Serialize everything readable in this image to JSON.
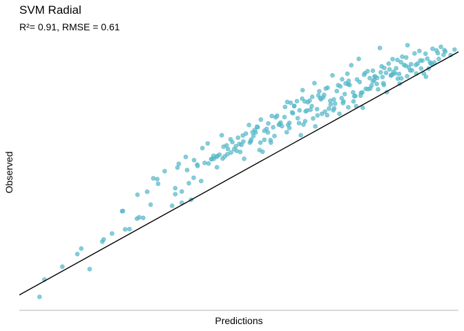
{
  "chart_data": {
    "type": "scatter",
    "title": "SVM Radial",
    "subtitle": "R²= 0.91, RMSE = 0.61",
    "xlabel": "Predictions",
    "ylabel": "Observed",
    "xlim": [
      0,
      100
    ],
    "ylim": [
      0,
      100
    ],
    "grid": false,
    "axis_ticks": false,
    "point_color": "#5bbccd",
    "point_stroke": "#3aa3b5",
    "line_color": "#000000",
    "reference_line": {
      "x": [
        0,
        100
      ],
      "y": [
        5.6,
        94.2
      ]
    },
    "points": {
      "x": [
        4.6,
        5.7,
        9.8,
        13.2,
        14.1,
        16.0,
        18.9,
        19.2,
        21.1,
        23.4,
        23.6,
        24.1,
        25.1,
        26.8,
        26.9,
        27.3,
        28.2,
        29.1,
        29.9,
        31.4,
        31.6,
        34.8,
        35.5,
        35.5,
        36.0,
        37.0,
        37.0,
        38.2,
        38.6,
        39.1,
        39.7,
        40.5,
        41.4,
        42.2,
        43.1,
        43.8,
        44.3,
        45.0,
        45.1,
        45.6,
        46.3,
        46.8,
        47.2,
        47.4,
        48.2,
        48.5,
        49.5,
        49.8,
        50.3,
        51.0,
        51.6,
        52.5,
        52.7,
        53.3,
        53.8,
        54.3,
        54.9,
        55.4,
        55.8,
        56.7,
        57.2,
        57.8,
        58.4,
        59.3,
        59.5,
        60.5,
        61.0,
        61.5,
        61.8,
        62.3,
        62.6,
        63.2,
        63.8,
        64.4,
        64.5,
        65.0,
        65.7,
        66.1,
        66.7,
        67.2,
        67.9,
        68.1,
        68.7,
        69.2,
        69.4,
        70.2,
        70.8,
        71.3,
        71.7,
        72.6,
        73.1,
        73.5,
        74.1,
        74.7,
        75.0,
        75.6,
        76.1,
        76.9,
        77.3,
        77.5,
        78.1,
        78.7,
        79.3,
        80.2,
        80.5,
        80.9,
        81.5,
        82.1,
        82.5,
        83.0,
        83.5,
        84.1,
        84.7,
        85.0,
        85.8,
        86.2,
        86.9,
        87.2,
        88.0,
        88.4,
        89.2,
        90.0,
        90.4,
        91.1,
        91.8,
        92.5,
        93.2,
        94.1,
        94.5,
        95.3,
        96.0,
        97.0,
        98.2,
        99.1,
        30.5,
        33.1,
        37.9,
        40.6,
        42.9,
        44.9,
        46.1,
        48.9,
        50.9,
        53.1,
        55.0,
        57.3,
        59.1,
        60.4,
        61.2,
        62.6,
        64.1,
        65.2,
        66.3,
        67.4,
        68.3,
        69.6,
        70.5,
        71.9,
        72.9,
        73.8,
        74.9,
        76.0,
        76.7,
        77.8,
        78.9,
        79.9,
        80.8,
        81.7,
        82.7,
        83.7,
        84.6,
        85.6,
        86.6,
        87.6,
        88.3,
        89.4,
        91.5,
        92.6,
        93.7,
        95.5,
        96.6,
        49.3,
        51.2,
        52.8,
        54.7,
        56.3,
        58.1,
        59.8,
        61.5,
        63.4,
        65.1,
        66.9,
        68.5,
        70.1,
        71.6,
        73.4,
        74.9,
        76.5,
        78.2,
        79.8,
        81.4,
        83.1,
        84.9,
        86.5,
        88.1,
        90.3,
        92.1,
        94.0,
        96.8,
        41.7,
        44.2,
        47.5,
        50.1,
        53.6,
        55.8,
        57.5,
        60.9,
        63.7,
        65.5,
        67.8,
        69.8,
        71.5,
        73.7,
        75.2,
        77.7,
        79.4,
        81.0,
        82.9,
        85.2,
        87.0,
        89.0,
        91.3,
        93.5,
        36.3,
        39.8,
        43.7,
        46.5,
        48.1,
        50.6,
        52.3,
        54.1,
        56.6,
        58.7,
        62.1,
        64.7,
        66.6,
        68.9,
        70.9,
        72.3,
        74.3,
        76.3,
        78.5,
        80.5,
        82.3,
        84.3,
        86.1,
        88.7,
        90.7,
        92.9,
        95.0
      ],
      "y": [
        4.9,
        11.2,
        15.9,
        20.5,
        22.5,
        15.0,
        25.0,
        25.8,
        28.0,
        36.1,
        36.2,
        29.5,
        29.6,
        33.4,
        42.1,
        33.9,
        33.7,
        43.2,
        38.5,
        47.8,
        46.1,
        38.1,
        42.3,
        44.5,
        52.0,
        39.2,
        43.3,
        51.1,
        46.3,
        40.3,
        48.3,
        53.1,
        47.1,
        53.7,
        53.5,
        55.1,
        55.2,
        52.1,
        56.2,
        56.7,
        55.3,
        56.1,
        60.1,
        56.9,
        57.5,
        61.3,
        58.1,
        62.9,
        57.7,
        61.5,
        64.4,
        61.1,
        61.6,
        63.5,
        64.8,
        66.7,
        61.1,
        57.8,
        65.4,
        68.1,
        62.0,
        66.7,
        70.3,
        67.9,
        68.4,
        74.1,
        75.9,
        68.3,
        75.6,
        71.8,
        74.4,
        76.2,
        72.9,
        77.1,
        80.2,
        76.1,
        75.8,
        76.4,
        77.8,
        82.8,
        71.0,
        78.3,
        76.9,
        77.6,
        78.5,
        81.1,
        76.3,
        85.6,
        73.6,
        82.0,
        81.6,
        84.2,
        78.8,
        86.2,
        83.6,
        89.3,
        76.1,
        84.1,
        91.6,
        83.2,
        79.4,
        86.4,
        87.1,
        81.9,
        87.3,
        85.2,
        84.7,
        95.6,
        88.9,
        82.1,
        86.5,
        89.9,
        85.6,
        91.5,
        88.2,
        84.4,
        90.4,
        92.4,
        89.1,
        96.6,
        89.7,
        93.6,
        86.3,
        94.5,
        91.0,
        93.5,
        88.1,
        95.3,
        90.3,
        93.7,
        96.0,
        94.3,
        93.0,
        95.0,
        48.1,
        50.7,
        55.9,
        52.6,
        60.8,
        55.9,
        63.8,
        58.7,
        63.7,
        64.9,
        69.5,
        61.1,
        67.6,
        70.4,
        67.5,
        74.5,
        63.8,
        72.5,
        73.1,
        67.0,
        79.8,
        72.4,
        73.5,
        75.3,
        71.6,
        76.1,
        74.0,
        79.4,
        74.4,
        79.2,
        80.7,
        80.8,
        83.9,
        80.5,
        85.0,
        79.5,
        85.6,
        86.3,
        82.6,
        89.4,
        85.3,
        87.4,
        88.1,
        85.1,
        89.9,
        91.6,
        93.1,
        59.8,
        55.2,
        62.2,
        58.4,
        66.1,
        63.5,
        67.1,
        66.4,
        70.0,
        68.9,
        69.9,
        77.3,
        71.1,
        76.8,
        77.3,
        82.3,
        78.1,
        73.8,
        84.6,
        82.5,
        88.3,
        85.9,
        86.1,
        92.1,
        89.4,
        86.3,
        89.6,
        94.8,
        59.1,
        56.3,
        58.8,
        60.6,
        65.7,
        62.1,
        70.8,
        64.9,
        68.2,
        72.8,
        73.3,
        80.8,
        72.9,
        75.5,
        82.1,
        78.2,
        80.6,
        85.2,
        82.8,
        86.9,
        84.5,
        87.4,
        91.0,
        90.4,
        53.4,
        54.7,
        55.1,
        59.6,
        62.3,
        60.3,
        67.5,
        66.9,
        64.8,
        70.9,
        72.1,
        67.7,
        74.4,
        71.6,
        75.0,
        79.9,
        82.7,
        78.0,
        85.8,
        83.4,
        86.7,
        87.8,
        91.2,
        88.5,
        89.9,
        91.7,
        94.7
      ]
    }
  }
}
